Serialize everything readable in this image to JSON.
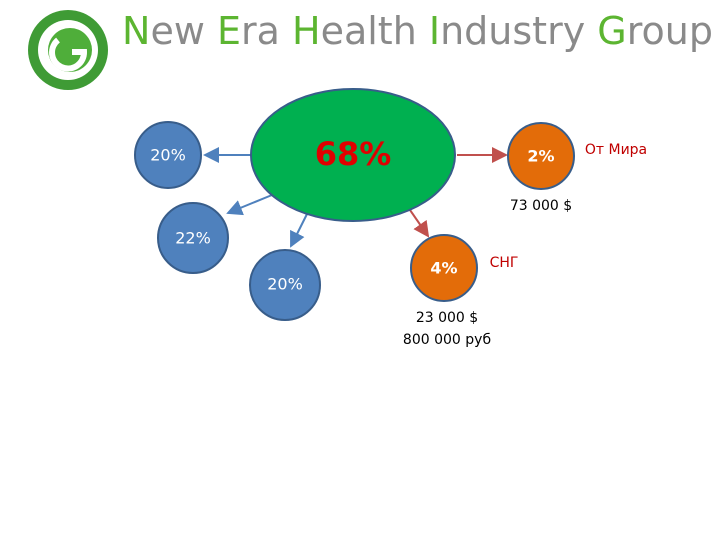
{
  "header": {
    "title": "New Era Health Industry Group"
  },
  "nodes": [
    {
      "label": "68%"
    },
    {
      "label": "20%"
    },
    {
      "label": "22%"
    },
    {
      "label": "20%"
    },
    {
      "label": "2%",
      "note": "От Мира",
      "amount": "73 000 $"
    },
    {
      "label": "4%",
      "note": "СНГ",
      "amount": "23 000 $",
      "amount2": "800 000 руб"
    }
  ]
}
